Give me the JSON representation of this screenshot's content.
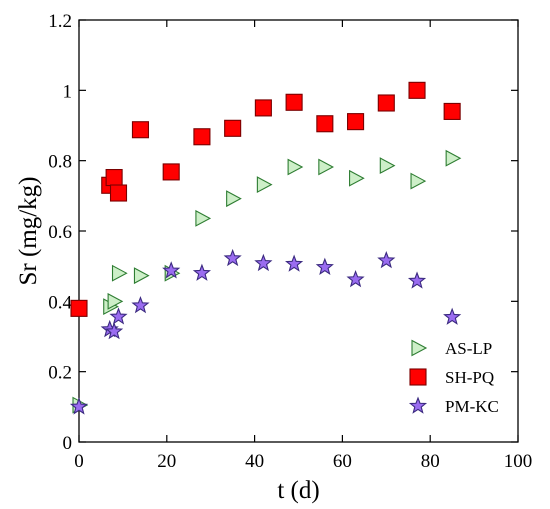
{
  "chart_data": {
    "type": "scatter",
    "xlabel": "t (d)",
    "ylabel": "Sr (mg/kg)",
    "xlim": [
      0,
      100
    ],
    "ylim": [
      0,
      1.2
    ],
    "xticks": [
      0,
      20,
      40,
      60,
      80,
      100
    ],
    "yticks": [
      0,
      0.2,
      0.4,
      0.6,
      0.8,
      1,
      1.2
    ],
    "ytick_labels": [
      "0",
      "0.2",
      "0.4",
      "0.6",
      "0.8",
      "1",
      "1.2"
    ],
    "grid": false,
    "legend_position": "bottom-right",
    "series": [
      {
        "name": "AS-LP",
        "marker": "triangle-right",
        "fill": "#cdefc8",
        "stroke": "#2e7d32",
        "points": [
          [
            0,
            0.105
          ],
          [
            7,
            0.385
          ],
          [
            8,
            0.4
          ],
          [
            9,
            0.48
          ],
          [
            14,
            0.473
          ],
          [
            21,
            0.48
          ],
          [
            28,
            0.636
          ],
          [
            35,
            0.692
          ],
          [
            42,
            0.732
          ],
          [
            49,
            0.782
          ],
          [
            56,
            0.782
          ],
          [
            63,
            0.75
          ],
          [
            70,
            0.786
          ],
          [
            77,
            0.742
          ],
          [
            85,
            0.807
          ]
        ]
      },
      {
        "name": "SH-PQ",
        "marker": "square",
        "fill": "#ff0000",
        "stroke": "#7a0000",
        "points": [
          [
            0,
            0.38
          ],
          [
            7,
            0.73
          ],
          [
            8,
            0.752
          ],
          [
            9,
            0.708
          ],
          [
            14,
            0.888
          ],
          [
            21,
            0.768
          ],
          [
            28,
            0.868
          ],
          [
            35,
            0.892
          ],
          [
            42,
            0.95
          ],
          [
            49,
            0.966
          ],
          [
            56,
            0.905
          ],
          [
            63,
            0.911
          ],
          [
            70,
            0.964
          ],
          [
            77,
            1.0
          ],
          [
            85,
            0.94
          ]
        ]
      },
      {
        "name": "PM-KC",
        "marker": "star",
        "fill": "#9a6cf0",
        "stroke": "#3b2a80",
        "points": [
          [
            0,
            0.1
          ],
          [
            7,
            0.32
          ],
          [
            8,
            0.314
          ],
          [
            9,
            0.356
          ],
          [
            14,
            0.388
          ],
          [
            21,
            0.487
          ],
          [
            28,
            0.48
          ],
          [
            35,
            0.522
          ],
          [
            42,
            0.508
          ],
          [
            49,
            0.506
          ],
          [
            56,
            0.497
          ],
          [
            63,
            0.462
          ],
          [
            70,
            0.516
          ],
          [
            77,
            0.458
          ],
          [
            85,
            0.355
          ]
        ]
      }
    ]
  }
}
